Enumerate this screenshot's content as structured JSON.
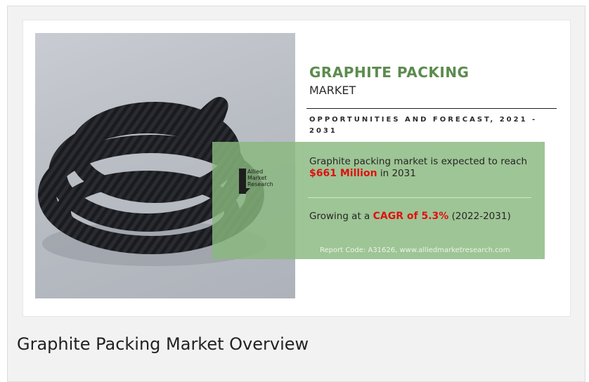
{
  "infographic": {
    "title": "GRAPHITE PACKING",
    "subtitle": "MARKET",
    "section_heading": "OPPORTUNITIES AND FORECAST, 2021 - 2031",
    "logo_lines": [
      "Allied",
      "Market",
      "Research"
    ],
    "stat1_prefix": "Graphite packing market is expected to reach",
    "stat1_value": "$661 Million",
    "stat1_suffix": "in 2031",
    "stat2_prefix": "Growing at a",
    "stat2_value": "CAGR of 5.3%",
    "stat2_suffix": "(2022-2031)",
    "report_code": "Report Code: A31626, www.alliedmarketresearch.com"
  },
  "caption": "Graphite Packing Market Overview",
  "colors": {
    "title_green": "#5b8c4e",
    "panel_green": "#89b87e",
    "highlight_red": "#e01010"
  }
}
